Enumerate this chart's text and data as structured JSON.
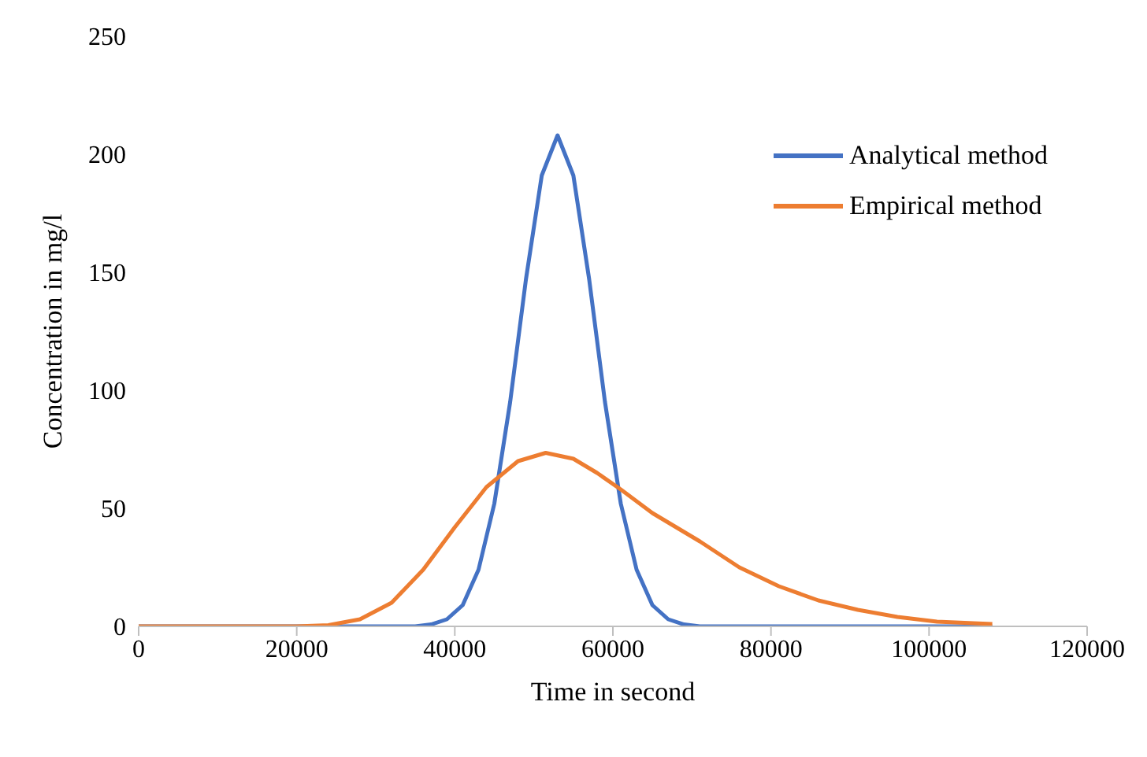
{
  "chart_data": {
    "type": "line",
    "xlabel": "Time in second",
    "ylabel": "Concentration in mg/l",
    "xlim": [
      0,
      120000
    ],
    "xticks": [
      0,
      20000,
      40000,
      60000,
      80000,
      100000,
      120000
    ],
    "ylim": [
      0,
      250
    ],
    "yticks": [
      0,
      50,
      100,
      150,
      200,
      250
    ],
    "grid": false,
    "legend": "top right",
    "marker": "none",
    "line_style": "solid",
    "series": [
      {
        "name": "Analytical method",
        "color": "#4472c4",
        "x": [
          0,
          35000,
          37000,
          39000,
          41000,
          43000,
          45000,
          47000,
          49000,
          51000,
          53000,
          55000,
          57000,
          59000,
          61000,
          63000,
          65000,
          67000,
          69000,
          71000,
          108000
        ],
        "values": [
          0,
          0,
          0.8,
          3,
          9,
          24,
          52,
          95,
          147,
          191,
          208,
          191,
          147,
          95,
          52,
          24,
          9,
          3,
          0.8,
          0,
          0
        ]
      },
      {
        "name": "Empirical method",
        "color": "#ed7d31",
        "x": [
          0,
          20000,
          24000,
          28000,
          32000,
          36000,
          40000,
          44000,
          48000,
          51500,
          55000,
          58000,
          61000,
          65000,
          71000,
          76000,
          81000,
          86000,
          91000,
          96000,
          101000,
          108000
        ],
        "values": [
          0,
          0,
          0.5,
          3,
          10,
          24,
          42,
          59,
          70,
          73.5,
          71,
          65,
          58,
          48,
          36,
          25,
          17,
          11,
          7,
          4,
          2,
          1
        ]
      }
    ]
  }
}
